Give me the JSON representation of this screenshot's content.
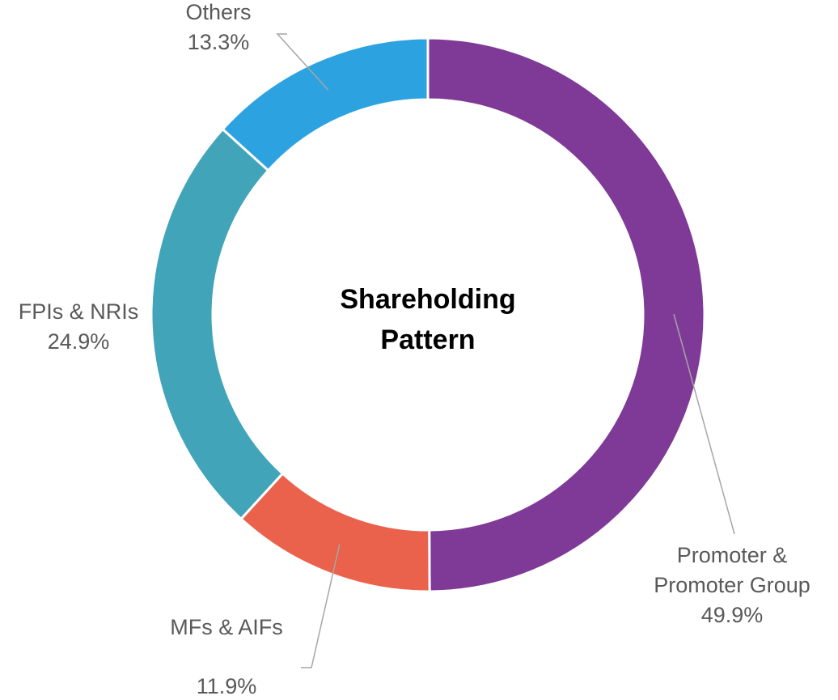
{
  "chart_data": {
    "type": "donut",
    "title": "Shareholding Pattern",
    "categories": [
      "Promoter & Promoter Group",
      "MFs & AIFs",
      "FPIs & NRIs",
      "Others"
    ],
    "values": [
      49.9,
      11.9,
      24.9,
      13.3
    ],
    "value_labels": [
      "49.9%",
      "11.9%",
      "24.9%",
      "13.3%"
    ],
    "colors": [
      "#7e3a96",
      "#ea624b",
      "#41a4b9",
      "#2ca3e0"
    ]
  }
}
